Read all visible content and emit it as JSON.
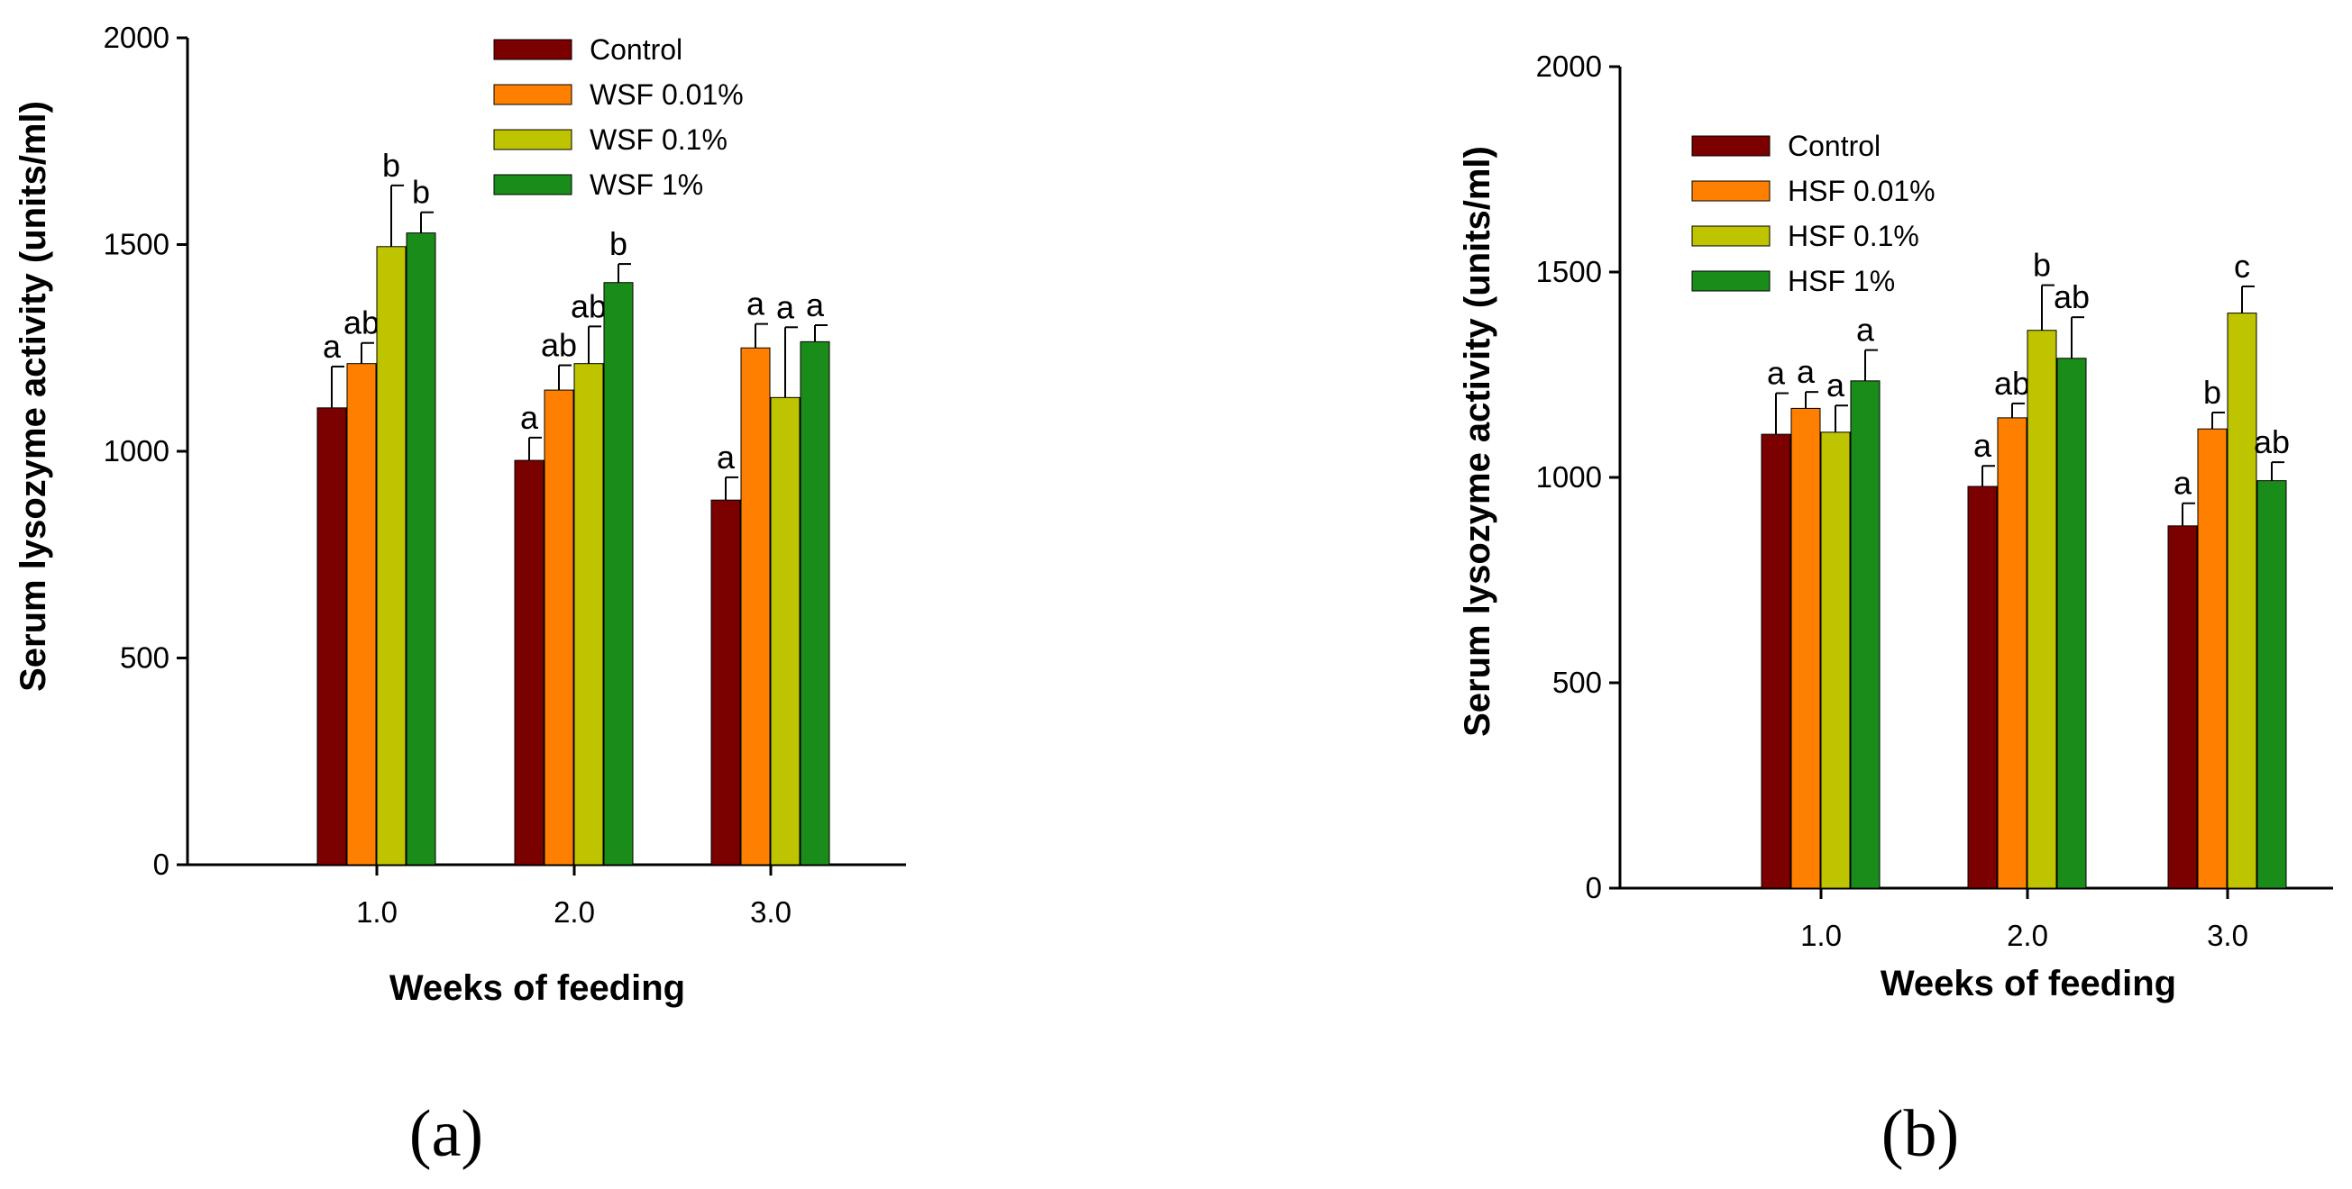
{
  "chart_data": [
    {
      "type": "bar",
      "panel_label": "(a)",
      "xlabel": "Weeks of feeding",
      "ylabel": "Serum lysozyme activity (units/ml)",
      "ylim": [
        0,
        2000
      ],
      "yticks": [
        0,
        500,
        1000,
        1500,
        2000
      ],
      "tick_labels": [
        "0",
        "500",
        "1000",
        "1500",
        "2000"
      ],
      "categories": [
        "1.0",
        "2.0",
        "3.0"
      ],
      "legend_position": "top-center",
      "series": [
        {
          "name": "Control",
          "color": "#7b0000",
          "values": [
            1105,
            978,
            882
          ],
          "errors": [
            100,
            55,
            55
          ],
          "letters": [
            "a",
            "a",
            "a"
          ]
        },
        {
          "name": "WSF 0.01%",
          "color": "#ff8000",
          "values": [
            1212,
            1148,
            1250
          ],
          "errors": [
            50,
            60,
            58
          ],
          "letters": [
            "ab",
            "ab",
            "a"
          ]
        },
        {
          "name": "WSF 0.1%",
          "color": "#bfc400",
          "values": [
            1495,
            1212,
            1130
          ],
          "errors": [
            148,
            90,
            170
          ],
          "letters": [
            "b",
            "ab",
            "a"
          ]
        },
        {
          "name": "WSF 1%",
          "color": "#1a8c1a",
          "values": [
            1528,
            1408,
            1265
          ],
          "errors": [
            50,
            45,
            40
          ],
          "letters": [
            "b",
            "b",
            "a"
          ]
        }
      ]
    },
    {
      "type": "bar",
      "panel_label": "(b)",
      "xlabel": "Weeks of feeding",
      "ylabel": "Serum lysozyme activity (units/ml)",
      "ylim": [
        0,
        2000
      ],
      "yticks": [
        0,
        500,
        1000,
        1500,
        2000
      ],
      "tick_labels": [
        "0",
        "500",
        "1000",
        "1500",
        "2000"
      ],
      "categories": [
        "1.0",
        "2.0",
        "3.0"
      ],
      "legend_position": "top-left",
      "series": [
        {
          "name": "Control",
          "color": "#7b0000",
          "values": [
            1105,
            978,
            882
          ],
          "errors": [
            100,
            50,
            55
          ],
          "letters": [
            "a",
            "a",
            "a"
          ]
        },
        {
          "name": "HSF 0.01%",
          "color": "#ff8000",
          "values": [
            1168,
            1145,
            1118
          ],
          "errors": [
            40,
            35,
            40
          ],
          "letters": [
            "a",
            "ab",
            "b"
          ]
        },
        {
          "name": "HSF 0.1%",
          "color": "#bfc400",
          "values": [
            1110,
            1358,
            1400
          ],
          "errors": [
            65,
            110,
            65
          ],
          "letters": [
            "a",
            "b",
            "c"
          ]
        },
        {
          "name": "HSF 1%",
          "color": "#1a8c1a",
          "values": [
            1235,
            1290,
            992
          ],
          "errors": [
            75,
            100,
            45
          ],
          "letters": [
            "a",
            "ab",
            "ab"
          ]
        }
      ]
    }
  ]
}
